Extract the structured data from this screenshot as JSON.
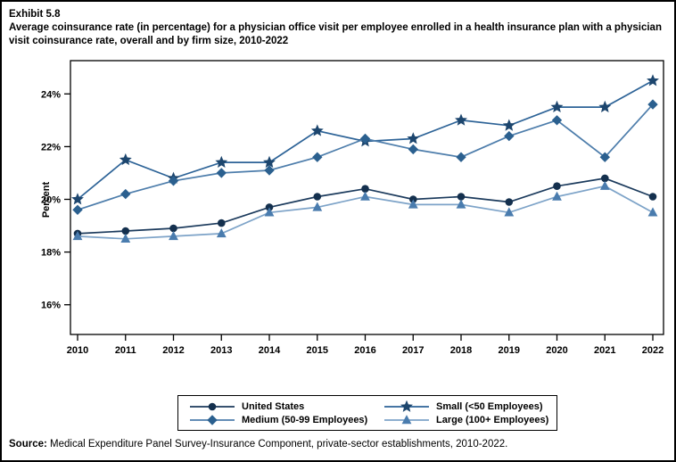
{
  "figure": {
    "exhibit_label": "Exhibit 5.8",
    "title": "Average coinsurance rate (in percentage) for a physician office visit per employee enrolled in a health insurance plan with a physician visit coinsurance rate, overall and by firm size, 2010-2022",
    "source_label": "Source:",
    "source_text": " Medical Expenditure Panel Survey-Insurance Component, private-sector establishments, 2010-2022."
  },
  "chart_data": {
    "type": "line",
    "title": "Average coinsurance rate (in percentage) for a physician office visit per employee enrolled in a health insurance plan with a physician visit coinsurance rate, overall and by firm size, 2010-2022",
    "xlabel": "",
    "ylabel": "Percent",
    "x": [
      2010,
      2011,
      2012,
      2013,
      2014,
      2015,
      2016,
      2017,
      2018,
      2019,
      2020,
      2021,
      2022
    ],
    "y_ticks": [
      {
        "label": "16%",
        "value": 16
      },
      {
        "label": "18%",
        "value": 18
      },
      {
        "label": "20%",
        "value": 20
      },
      {
        "label": "22%",
        "value": 22
      },
      {
        "label": "24%",
        "value": 24
      }
    ],
    "ylim": [
      14.9,
      25.3
    ],
    "grid": false,
    "legend_position": "bottom-center boxed 2x2",
    "series": [
      {
        "name": "United States",
        "marker": "circle",
        "marker_color": "#14304e",
        "line_color": "#1b3a5c",
        "values": [
          18.7,
          18.8,
          18.9,
          19.1,
          19.7,
          20.1,
          20.4,
          20.0,
          20.1,
          19.9,
          20.5,
          20.8,
          20.1
        ]
      },
      {
        "name": "Small (<50 Employees)",
        "marker": "star",
        "marker_color": "#1d466e",
        "line_color": "#2d6397",
        "values": [
          20.0,
          21.5,
          20.8,
          21.4,
          21.4,
          22.6,
          22.2,
          22.3,
          23.0,
          22.8,
          23.5,
          23.5,
          24.5
        ]
      },
      {
        "name": "Medium (50-99 Employees)",
        "marker": "diamond",
        "marker_color": "#2b608f",
        "line_color": "#4d7dab",
        "values": [
          19.6,
          20.2,
          20.7,
          21.0,
          21.1,
          21.6,
          22.3,
          21.9,
          21.6,
          22.4,
          23.0,
          21.6,
          23.6
        ]
      },
      {
        "name": "Large (100+ Employees)",
        "marker": "triangle",
        "marker_color": "#4a7cae",
        "line_color": "#7da3c8",
        "values": [
          18.6,
          18.5,
          18.6,
          18.7,
          19.5,
          19.7,
          20.1,
          19.8,
          19.8,
          19.5,
          20.1,
          20.5,
          19.5
        ]
      }
    ],
    "legend_display_order_row_major": [
      "United States",
      "Small (<50 Employees)",
      "Medium (50-99 Employees)",
      "Large (100+ Employees)"
    ]
  }
}
